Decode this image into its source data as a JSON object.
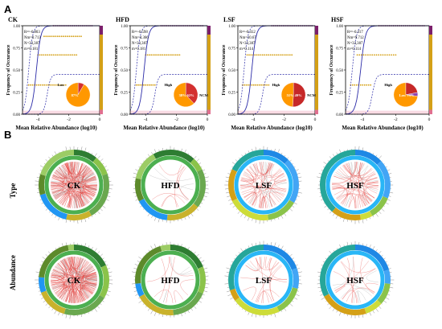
{
  "labels": {
    "A": "A",
    "B": "B"
  },
  "section_a": {
    "xlabel": "Mean Relative Abundance (log10)",
    "ylabel": "Frequency of Occurance",
    "y_ticks": [
      "1.00",
      "0.75",
      "0.50",
      "0.25",
      "0.00"
    ],
    "x_ticks": [
      "-4",
      "-2",
      "0"
    ]
  },
  "section_b": {
    "rows": [
      "Type",
      "Abundance"
    ]
  },
  "chart_data": [
    {
      "type": "scatter",
      "title": "CK",
      "xlabel": "Mean Relative Abundance (log10)",
      "ylabel": "Frequency of Occurance",
      "xlim": [
        -5,
        0
      ],
      "ylim": [
        0,
        1
      ],
      "stats": [
        "R²=-0.803",
        "Nm=0.713",
        "N=33,387",
        "m=0.181"
      ],
      "pie": {
        "labels": [
          "Low",
          "High",
          "NCM"
        ],
        "values": [
          8,
          0,
          87
        ],
        "colors": [
          "#d32f2f",
          "#8e44ad",
          "#ff9800"
        ],
        "label_text": [
          "Low",
          "87%"
        ]
      },
      "scatter_bands": [
        {
          "y": 1.0,
          "x": [
            -3.0,
            -0.5
          ],
          "color": "#8e2e6e"
        },
        {
          "y": 0.88,
          "x": [
            -3.6,
            -1.2
          ],
          "color": "#d4a017"
        },
        {
          "y": 0.67,
          "x": [
            -4.0,
            -1.5
          ],
          "color": "#d4a017"
        },
        {
          "y": 0.33,
          "x": [
            -4.6,
            -2.2
          ],
          "color": "#d4a017"
        }
      ]
    },
    {
      "type": "scatter",
      "title": "HFD",
      "xlabel": "Mean Relative Abundance (log10)",
      "ylabel": "Frequency of Occurance",
      "xlim": [
        -5,
        0
      ],
      "ylim": [
        0,
        1
      ],
      "stats": [
        "R²=-0.598",
        "Nm=4.366",
        "N=33,387",
        "m=0.181"
      ],
      "pie": {
        "labels": [
          "High",
          "NCM"
        ],
        "values": [
          38,
          62
        ],
        "colors": [
          "#d32f2f",
          "#ff9800"
        ],
        "label_text": [
          "High",
          "38%",
          "62%",
          "NCM"
        ]
      },
      "scatter_bands": [
        {
          "y": 1.0,
          "x": [
            -3.0,
            -0.3
          ],
          "color": "#8e2e6e"
        },
        {
          "y": 0.67,
          "x": [
            -4.0,
            -1.8
          ],
          "color": "#d4a017"
        },
        {
          "y": 0.33,
          "x": [
            -4.6,
            -3.4
          ],
          "color": "#d4a017"
        }
      ]
    },
    {
      "type": "scatter",
      "title": "LSF",
      "xlabel": "Mean Relative Abundance (log10)",
      "ylabel": "Frequency of Occurance",
      "xlim": [
        -5,
        0
      ],
      "ylim": [
        0,
        1
      ],
      "stats": [
        "R²=-0.412",
        "Nm=10.67",
        "N=33,387",
        "m=0.114"
      ],
      "pie": {
        "labels": [
          "High",
          "NCM"
        ],
        "values": [
          51,
          49
        ],
        "colors": [
          "#c62828",
          "#ff9800"
        ],
        "label_text": [
          "High",
          "51%",
          "49%",
          "NCM"
        ]
      },
      "scatter_bands": [
        {
          "y": 1.0,
          "x": [
            -2.8,
            -0.2
          ],
          "color": "#8e2e6e"
        },
        {
          "y": 0.67,
          "x": [
            -4.4,
            -1.5
          ],
          "color": "#d4a017"
        },
        {
          "y": 0.33,
          "x": [
            -4.7,
            -3.0
          ],
          "color": "#d4a017"
        }
      ]
    },
    {
      "type": "scatter",
      "title": "HSF",
      "xlabel": "Mean Relative Abundance (log10)",
      "ylabel": "Frequency of Occurance",
      "xlim": [
        -5,
        0
      ],
      "ylim": [
        0,
        1
      ],
      "stats": [
        "R²=-0.317",
        "Nm=9.712",
        "N=33,387",
        "m=0.114"
      ],
      "pie": {
        "labels": [
          "High",
          "Low",
          "NCM"
        ],
        "values": [
          22,
          5,
          73
        ],
        "colors": [
          "#c62828",
          "#8e44ad",
          "#ff9800"
        ],
        "label_text": [
          "High",
          "Low",
          "73%"
        ]
      },
      "scatter_bands": [
        {
          "y": 1.0,
          "x": [
            -3.0,
            -0.3
          ],
          "color": "#8e2e6e"
        },
        {
          "y": 0.67,
          "x": [
            -4.3,
            -2.0
          ],
          "color": "#d4a017"
        },
        {
          "y": 0.33,
          "x": [
            -4.7,
            -3.5
          ],
          "color": "#d4a017"
        }
      ]
    }
  ],
  "networks": {
    "type": [
      {
        "label": "CK",
        "density": "dense",
        "ring": "green"
      },
      {
        "label": "HFD",
        "density": "sparse",
        "ring": "green"
      },
      {
        "label": "LSF",
        "density": "medium",
        "ring": "blue"
      },
      {
        "label": "HSF",
        "density": "medium",
        "ring": "blue"
      }
    ],
    "abundance": [
      {
        "label": "CK",
        "density": "dense",
        "ring": "green"
      },
      {
        "label": "HFD",
        "density": "sparse",
        "ring": "green"
      },
      {
        "label": "LSF",
        "density": "light",
        "ring": "blue"
      },
      {
        "label": "HSF",
        "density": "light",
        "ring": "blue"
      }
    ]
  }
}
